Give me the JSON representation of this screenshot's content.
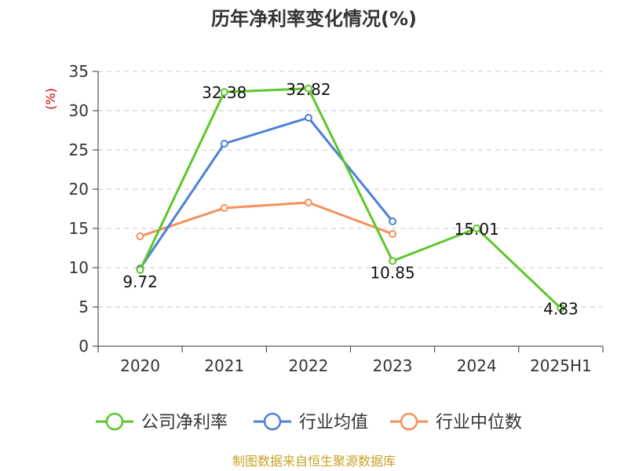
{
  "chart_data": {
    "type": "line",
    "title": "历年净利率变化情况(%)",
    "unit_label": "(%)",
    "categories": [
      "2020",
      "2021",
      "2022",
      "2023",
      "2024",
      "2025H1"
    ],
    "y_ticks": [
      "0",
      "5",
      "10",
      "15",
      "20",
      "25",
      "30",
      "35"
    ],
    "ylim": [
      0,
      35
    ],
    "grid": true,
    "legend_position": "bottom",
    "series": [
      {
        "name": "公司净利率",
        "color": "#5cc72a",
        "values": [
          9.72,
          32.38,
          32.82,
          10.85,
          15.01,
          4.83
        ],
        "labels": [
          "9.72",
          "32.38",
          "32.82",
          "10.85",
          "15.01",
          "4.83"
        ]
      },
      {
        "name": "行业均值",
        "color": "#4e7fd9",
        "values": [
          9.9,
          25.8,
          29.1,
          15.9,
          null,
          null
        ]
      },
      {
        "name": "行业中位数",
        "color": "#f5905a",
        "values": [
          14.0,
          17.6,
          18.3,
          14.3,
          null,
          null
        ]
      }
    ]
  },
  "source": "制图数据来自恒生聚源数据库"
}
